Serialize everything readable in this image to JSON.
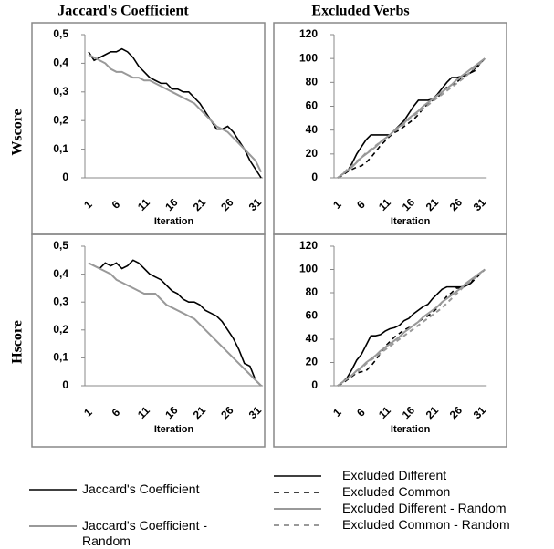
{
  "column_titles": [
    "Jaccard's Coefficient",
    "Excluded Verbs"
  ],
  "row_titles": [
    "Wscore",
    "Hscore"
  ],
  "chart_data": [
    {
      "type": "line",
      "xlabel": "Iteration",
      "categories": [
        "1",
        null,
        null,
        null,
        null,
        "6",
        null,
        null,
        null,
        null,
        "11",
        null,
        null,
        null,
        null,
        "16",
        null,
        null,
        null,
        null,
        "21",
        null,
        null,
        null,
        null,
        "26",
        null,
        null,
        null,
        null,
        "31",
        null
      ],
      "ylim": [
        0,
        0.5
      ],
      "yticks": [
        0,
        {
          "value": 0.1,
          "label": "0,1"
        },
        {
          "value": 0.2,
          "label": "0,2"
        },
        {
          "value": 0.3,
          "label": "0,3"
        },
        {
          "value": 0.4,
          "label": "0,4"
        },
        {
          "value": 0.5,
          "label": "0,5"
        }
      ],
      "series": [
        {
          "name": "Jaccard's Coefficient",
          "color": "#000000",
          "dashed": false,
          "values": [
            0.44,
            0.41,
            0.42,
            0.43,
            0.44,
            0.44,
            0.45,
            0.44,
            0.42,
            0.39,
            0.37,
            0.35,
            0.34,
            0.33,
            0.33,
            0.31,
            0.31,
            0.3,
            0.3,
            0.28,
            0.26,
            0.23,
            0.2,
            0.17,
            0.17,
            0.18,
            0.16,
            0.13,
            0.1,
            0.06,
            0.03,
            0.0
          ]
        },
        {
          "name": "Jaccard's Coefficient - Random",
          "color": "#999999",
          "dashed": false,
          "values": [
            0.43,
            0.42,
            0.41,
            0.4,
            0.38,
            0.37,
            0.37,
            0.36,
            0.35,
            0.35,
            0.34,
            0.34,
            0.33,
            0.32,
            0.31,
            0.3,
            0.29,
            0.28,
            0.27,
            0.26,
            0.24,
            0.22,
            0.2,
            0.18,
            0.17,
            0.16,
            0.14,
            0.12,
            0.1,
            0.08,
            0.06,
            0.02
          ]
        }
      ]
    },
    {
      "type": "line",
      "xlabel": "Iteration",
      "categories": [
        "1",
        null,
        null,
        null,
        null,
        "6",
        null,
        null,
        null,
        null,
        "11",
        null,
        null,
        null,
        null,
        "16",
        null,
        null,
        null,
        null,
        "21",
        null,
        null,
        null,
        null,
        "26",
        null,
        null,
        null,
        null,
        "31",
        null
      ],
      "ylim": [
        0,
        120
      ],
      "yticks": [
        0,
        20,
        40,
        60,
        80,
        100,
        120
      ],
      "series": [
        {
          "name": "Excluded Different",
          "color": "#000000",
          "dashed": false,
          "values": [
            0,
            3,
            5,
            12,
            20,
            26,
            32,
            36,
            36,
            36,
            36,
            36,
            40,
            44,
            48,
            54,
            60,
            65,
            65,
            65,
            66,
            70,
            75,
            80,
            84,
            84,
            85,
            86,
            88,
            92,
            96,
            100
          ]
        },
        {
          "name": "Excluded Common",
          "color": "#000000",
          "dashed": true,
          "values": [
            0,
            2,
            5,
            7,
            9,
            10,
            13,
            17,
            22,
            27,
            31,
            35,
            38,
            40,
            43,
            46,
            49,
            53,
            58,
            62,
            65,
            67,
            72,
            76,
            78,
            80,
            83,
            86,
            88,
            90,
            96,
            100
          ]
        },
        {
          "name": "Excluded Different - Random",
          "color": "#999999",
          "dashed": false,
          "values": [
            0,
            3,
            6,
            9,
            13,
            17,
            20,
            23,
            26,
            30,
            33,
            36,
            40,
            43,
            46,
            50,
            53,
            56,
            60,
            63,
            66,
            69,
            72,
            75,
            78,
            82,
            85,
            88,
            91,
            94,
            97,
            100
          ]
        },
        {
          "name": "Excluded Common - Random",
          "color": "#999999",
          "dashed": true,
          "values": [
            0,
            3,
            7,
            10,
            14,
            17,
            21,
            24,
            27,
            30,
            33,
            36,
            39,
            42,
            45,
            49,
            52,
            55,
            58,
            61,
            64,
            67,
            70,
            73,
            76,
            79,
            82,
            85,
            89,
            93,
            96,
            100
          ]
        }
      ]
    },
    {
      "type": "line",
      "xlabel": "Iteration",
      "categories": [
        "1",
        null,
        null,
        null,
        null,
        "6",
        null,
        null,
        null,
        null,
        "11",
        null,
        null,
        null,
        null,
        "16",
        null,
        null,
        null,
        null,
        "21",
        null,
        null,
        null,
        null,
        "26",
        null,
        null,
        null,
        null,
        "31",
        null
      ],
      "ylim": [
        0,
        0.5
      ],
      "yticks": [
        0,
        {
          "value": 0.1,
          "label": "0,1"
        },
        {
          "value": 0.2,
          "label": "0,2"
        },
        {
          "value": 0.3,
          "label": "0,3"
        },
        {
          "value": 0.4,
          "label": "0,4"
        },
        {
          "value": 0.5,
          "label": "0,5"
        }
      ],
      "series": [
        {
          "name": "Jaccard's Coefficient",
          "color": "#000000",
          "dashed": false,
          "values": [
            0.44,
            0.43,
            0.42,
            0.44,
            0.43,
            0.44,
            0.42,
            0.43,
            0.45,
            0.44,
            0.42,
            0.4,
            0.39,
            0.38,
            0.36,
            0.34,
            0.33,
            0.31,
            0.3,
            0.3,
            0.29,
            0.27,
            0.26,
            0.25,
            0.23,
            0.2,
            0.17,
            0.13,
            0.08,
            0.07,
            0.02,
            0.0
          ]
        },
        {
          "name": "Jaccard's Coefficient - Random",
          "color": "#999999",
          "dashed": false,
          "values": [
            0.44,
            0.43,
            0.42,
            0.41,
            0.4,
            0.38,
            0.37,
            0.36,
            0.35,
            0.34,
            0.33,
            0.33,
            0.33,
            0.31,
            0.29,
            0.28,
            0.27,
            0.26,
            0.25,
            0.24,
            0.22,
            0.2,
            0.18,
            0.16,
            0.14,
            0.12,
            0.1,
            0.08,
            0.06,
            0.04,
            0.02,
            0.0
          ]
        }
      ]
    },
    {
      "type": "line",
      "xlabel": "Iteration",
      "categories": [
        "1",
        null,
        null,
        null,
        null,
        "6",
        null,
        null,
        null,
        null,
        "11",
        null,
        null,
        null,
        null,
        "16",
        null,
        null,
        null,
        null,
        "21",
        null,
        null,
        null,
        null,
        "26",
        null,
        null,
        null,
        null,
        "31",
        null
      ],
      "ylim": [
        0,
        120
      ],
      "yticks": [
        0,
        20,
        40,
        60,
        80,
        100,
        120
      ],
      "series": [
        {
          "name": "Excluded Different",
          "color": "#000000",
          "dashed": false,
          "values": [
            0,
            3,
            7,
            14,
            22,
            27,
            35,
            43,
            43,
            44,
            47,
            49,
            50,
            52,
            56,
            58,
            62,
            65,
            68,
            70,
            75,
            79,
            83,
            85,
            85,
            85,
            85,
            86,
            88,
            94,
            97,
            100
          ]
        },
        {
          "name": "Excluded Common",
          "color": "#000000",
          "dashed": true,
          "values": [
            0,
            2,
            5,
            8,
            11,
            12,
            13,
            17,
            22,
            28,
            34,
            38,
            42,
            45,
            48,
            50,
            52,
            55,
            58,
            60,
            63,
            67,
            72,
            77,
            80,
            84,
            84,
            86,
            88,
            92,
            96,
            100
          ]
        },
        {
          "name": "Excluded Different - Random",
          "color": "#999999",
          "dashed": false,
          "values": [
            0,
            3,
            6,
            9,
            13,
            16,
            20,
            23,
            26,
            30,
            33,
            36,
            39,
            42,
            46,
            49,
            52,
            55,
            59,
            62,
            65,
            68,
            72,
            75,
            78,
            81,
            84,
            88,
            91,
            94,
            97,
            100
          ]
        },
        {
          "name": "Excluded Common - Random",
          "color": "#999999",
          "dashed": true,
          "values": [
            0,
            3,
            6,
            9,
            12,
            15,
            19,
            22,
            25,
            28,
            31,
            34,
            37,
            40,
            43,
            46,
            49,
            52,
            55,
            58,
            61,
            64,
            67,
            71,
            75,
            79,
            83,
            87,
            90,
            93,
            97,
            100
          ]
        }
      ]
    }
  ]
}
